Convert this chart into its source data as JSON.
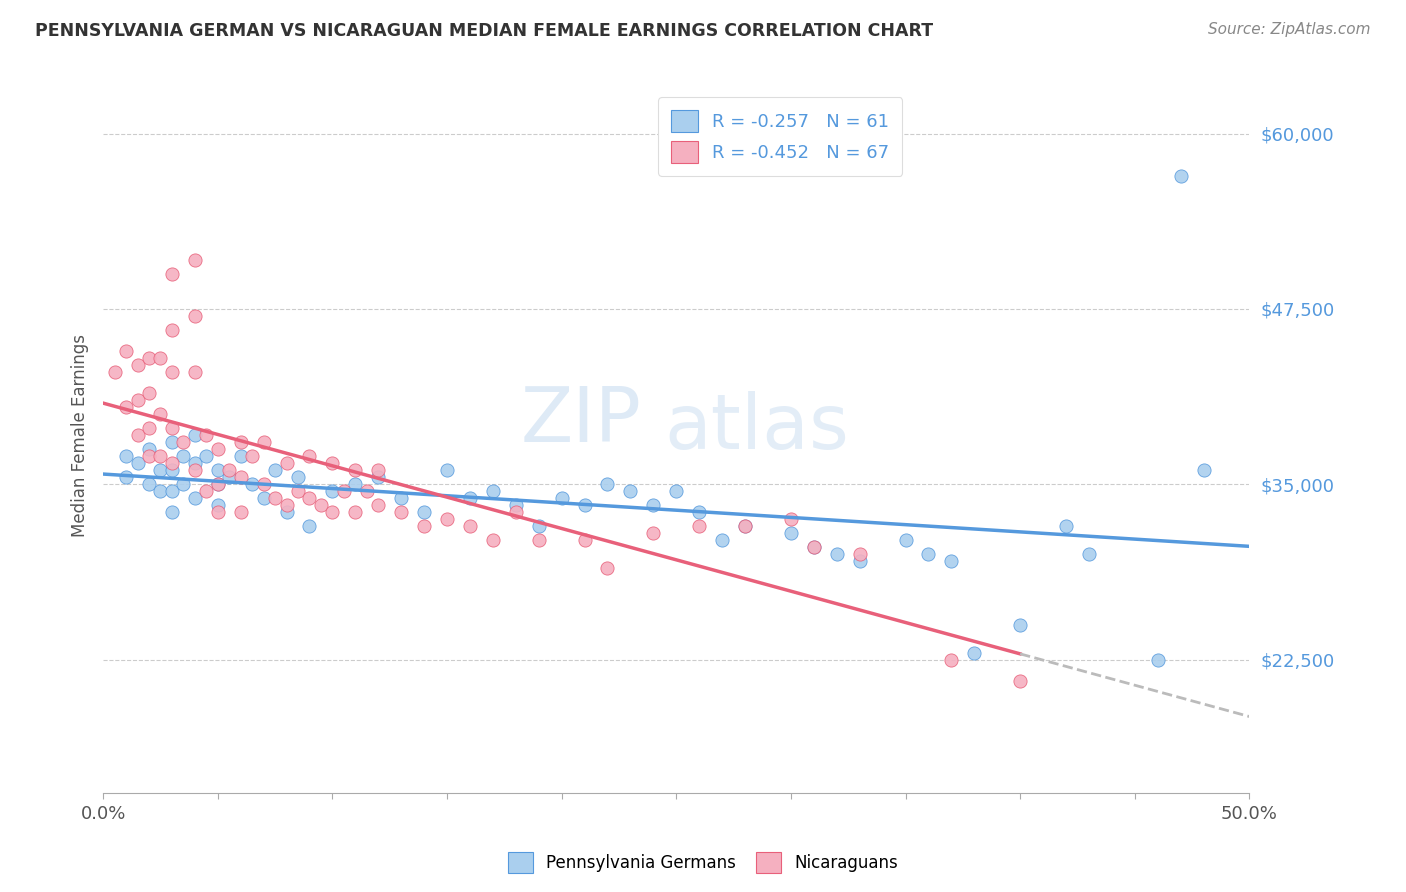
{
  "title": "PENNSYLVANIA GERMAN VS NICARAGUAN MEDIAN FEMALE EARNINGS CORRELATION CHART",
  "source": "Source: ZipAtlas.com",
  "ylabel": "Median Female Earnings",
  "ytick_labels": [
    "$22,500",
    "$35,000",
    "$47,500",
    "$60,000"
  ],
  "ytick_values": [
    22500,
    35000,
    47500,
    60000
  ],
  "ymin": 13000,
  "ymax": 64000,
  "xmin": 0.0,
  "xmax": 0.5,
  "blue_R": -0.257,
  "blue_N": 61,
  "pink_R": -0.452,
  "pink_N": 67,
  "blue_color": "#aacfee",
  "blue_line_color": "#5599dd",
  "pink_color": "#f5b0c0",
  "pink_line_color": "#e8607a",
  "dashed_line_color": "#bbbbbb",
  "blue_label": "Pennsylvania Germans",
  "pink_label": "Nicaraguans",
  "watermark_zip": "ZIP",
  "watermark_atlas": "atlas",
  "blue_x": [
    0.01,
    0.01,
    0.015,
    0.02,
    0.02,
    0.025,
    0.025,
    0.03,
    0.03,
    0.03,
    0.03,
    0.035,
    0.035,
    0.04,
    0.04,
    0.04,
    0.045,
    0.05,
    0.05,
    0.05,
    0.055,
    0.06,
    0.065,
    0.07,
    0.075,
    0.08,
    0.085,
    0.09,
    0.1,
    0.11,
    0.12,
    0.13,
    0.14,
    0.15,
    0.16,
    0.17,
    0.18,
    0.19,
    0.2,
    0.21,
    0.22,
    0.23,
    0.24,
    0.25,
    0.26,
    0.27,
    0.28,
    0.3,
    0.31,
    0.32,
    0.33,
    0.35,
    0.36,
    0.37,
    0.38,
    0.4,
    0.42,
    0.43,
    0.46,
    0.47,
    0.48
  ],
  "blue_y": [
    37000,
    35500,
    36500,
    37500,
    35000,
    36000,
    34500,
    38000,
    36000,
    34500,
    33000,
    37000,
    35000,
    38500,
    36500,
    34000,
    37000,
    36000,
    35000,
    33500,
    35500,
    37000,
    35000,
    34000,
    36000,
    33000,
    35500,
    32000,
    34500,
    35000,
    35500,
    34000,
    33000,
    36000,
    34000,
    34500,
    33500,
    32000,
    34000,
    33500,
    35000,
    34500,
    33500,
    34500,
    33000,
    31000,
    32000,
    31500,
    30500,
    30000,
    29500,
    31000,
    30000,
    29500,
    23000,
    25000,
    32000,
    30000,
    22500,
    57000,
    36000
  ],
  "pink_x": [
    0.005,
    0.01,
    0.01,
    0.015,
    0.015,
    0.015,
    0.02,
    0.02,
    0.02,
    0.02,
    0.025,
    0.025,
    0.025,
    0.03,
    0.03,
    0.03,
    0.03,
    0.03,
    0.035,
    0.04,
    0.04,
    0.04,
    0.04,
    0.045,
    0.045,
    0.05,
    0.05,
    0.05,
    0.055,
    0.06,
    0.06,
    0.06,
    0.065,
    0.07,
    0.07,
    0.075,
    0.08,
    0.08,
    0.085,
    0.09,
    0.09,
    0.095,
    0.1,
    0.1,
    0.105,
    0.11,
    0.11,
    0.115,
    0.12,
    0.12,
    0.13,
    0.14,
    0.15,
    0.16,
    0.17,
    0.18,
    0.19,
    0.21,
    0.22,
    0.24,
    0.26,
    0.28,
    0.3,
    0.31,
    0.33,
    0.37,
    0.4
  ],
  "pink_y": [
    43000,
    44500,
    40500,
    43500,
    41000,
    38500,
    44000,
    41500,
    39000,
    37000,
    44000,
    40000,
    37000,
    50000,
    46000,
    43000,
    39000,
    36500,
    38000,
    51000,
    47000,
    43000,
    36000,
    38500,
    34500,
    37500,
    35000,
    33000,
    36000,
    38000,
    35500,
    33000,
    37000,
    38000,
    35000,
    34000,
    36500,
    33500,
    34500,
    37000,
    34000,
    33500,
    36500,
    33000,
    34500,
    36000,
    33000,
    34500,
    36000,
    33500,
    33000,
    32000,
    32500,
    32000,
    31000,
    33000,
    31000,
    31000,
    29000,
    31500,
    32000,
    32000,
    32500,
    30500,
    30000,
    22500,
    21000
  ]
}
